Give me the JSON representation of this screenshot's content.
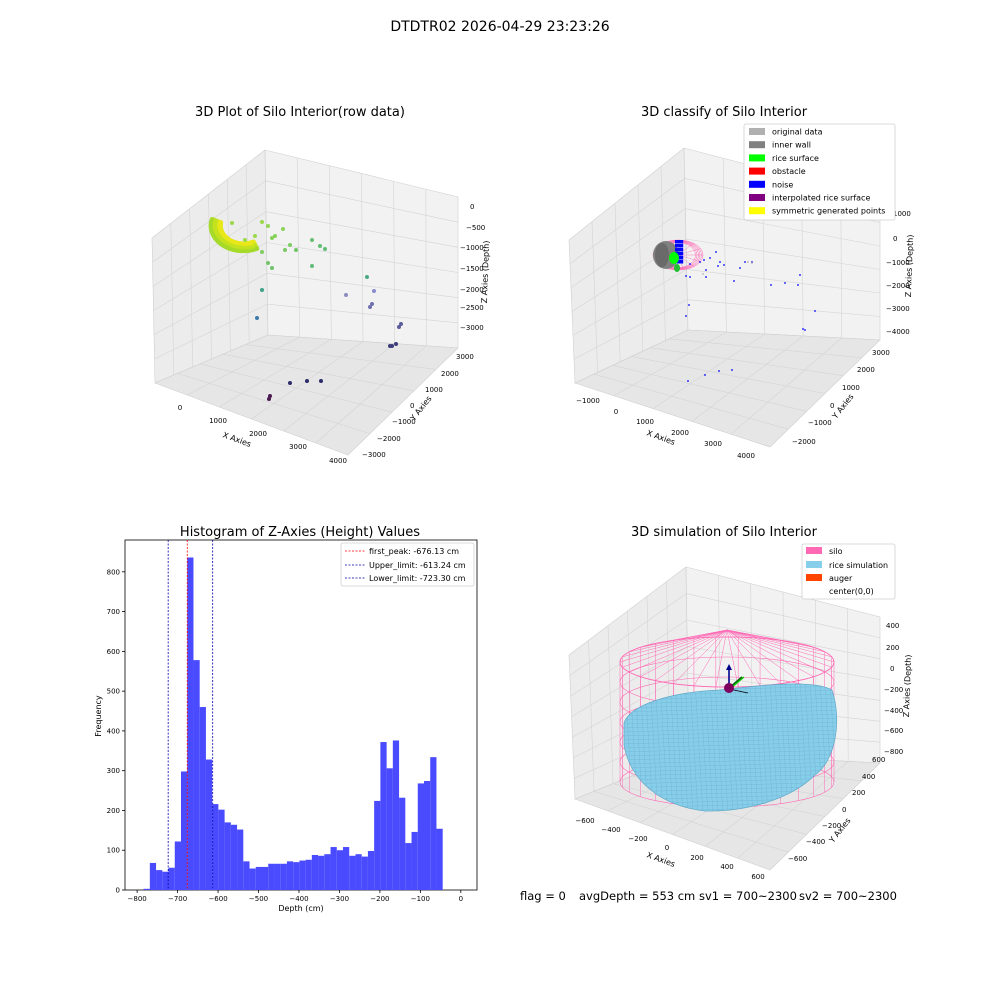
{
  "figure": {
    "title": "DTDTR02 2026-04-29 23:23:26",
    "footer": {
      "flag": "flag = 0",
      "avg_depth": "avgDepth = 553 cm",
      "sv1": "sv1 = 700~2300",
      "sv2": "sv2 = 700~2300"
    }
  },
  "colors": {
    "original": "#b0b0b0",
    "inner_wall": "#808080",
    "rice_surface": "#00ff00",
    "obstacle": "#ff0000",
    "noise": "#0000ff",
    "interp": "#800080",
    "sym": "#ffff00",
    "silo": "#ff69b4",
    "rice_sim": "#87ceeb",
    "auger": "#ff4500",
    "hist_bar": "#4a4afe",
    "peak": "#ff0000",
    "limit": "#0000aa"
  },
  "chart_data": [
    {
      "type": "scatter3d",
      "title": "3D Plot of Silo Interior(row data)",
      "xlabel": "X Axies",
      "ylabel": "Y Axies",
      "zlabel": "Z Axies (Depth)",
      "x_ticks": [
        "0",
        "1000",
        "2000",
        "3000",
        "4000"
      ],
      "y_ticks": [
        "−3000",
        "−2000",
        "−1000",
        "0",
        "1000",
        "2000",
        "3000"
      ],
      "z_ticks": [
        "0",
        "−500",
        "−1000",
        "−1500",
        "−2000",
        "−2500",
        "−3000"
      ],
      "z_tick_labels": [
        "0",
        "−500",
        "−1000",
        "−1500",
        "−2000",
        "−2500",
        "−3000"
      ]
    },
    {
      "type": "scatter3d",
      "title": "3D classify of Silo Interior",
      "xlabel": "X Axies",
      "ylabel": "Y Axies",
      "zlabel": "Z Axies (Depth)",
      "x_ticks": [
        "−1000",
        "0",
        "1000",
        "2000",
        "3000",
        "4000"
      ],
      "y_ticks": [
        "−2000",
        "−1000",
        "0",
        "1000",
        "2000",
        "3000"
      ],
      "z_ticks": [
        "1000",
        "0",
        "−1000",
        "−2000",
        "−3000",
        "−4000"
      ],
      "legend": [
        "original data",
        "inner wall",
        "rice surface",
        "obstacle",
        "noise",
        "interpolated rice surface",
        "symmetric generated points"
      ]
    },
    {
      "type": "bar",
      "title": "Histogram of Z-Axies (Height) Values",
      "xlabel": "Depth (cm)",
      "ylabel": "Frequency",
      "xlim": [
        -830,
        40
      ],
      "ylim": [
        0,
        880
      ],
      "x_ticks": [
        -800,
        -700,
        -600,
        -500,
        -400,
        -300,
        -200,
        -100,
        0
      ],
      "y_ticks": [
        0,
        100,
        200,
        300,
        400,
        500,
        600,
        700,
        800
      ],
      "bin_start": -784,
      "bin_width": 15.4,
      "values": [
        3,
        68,
        50,
        46,
        56,
        122,
        298,
        836,
        578,
        460,
        328,
        216,
        202,
        170,
        164,
        152,
        72,
        54,
        58,
        58,
        66,
        66,
        66,
        72,
        70,
        74,
        76,
        88,
        86,
        90,
        108,
        100,
        108,
        86,
        90,
        84,
        98,
        224,
        372,
        306,
        376,
        232,
        118,
        146,
        268,
        274,
        334,
        154
      ],
      "lines": [
        {
          "label": "first_peak: -676.13 cm",
          "x": -676.13,
          "kind": "peak"
        },
        {
          "label": "Upper_limit: -613.24 cm",
          "x": -613.24,
          "kind": "limit"
        },
        {
          "label": "Lower_limit: -723.30 cm",
          "x": -723.3,
          "kind": "limit"
        }
      ]
    },
    {
      "type": "surface3d",
      "title": "3D simulation of Silo Interior",
      "xlabel": "X Axies",
      "ylabel": "Y Axies",
      "zlabel": "Z Axies (Depth)",
      "x_ticks": [
        "−600",
        "−400",
        "−200",
        "0",
        "200",
        "400",
        "600"
      ],
      "y_ticks": [
        "−600",
        "−400",
        "−200",
        "0",
        "200",
        "400",
        "600"
      ],
      "z_ticks": [
        "400",
        "200",
        "0",
        "−200",
        "−400",
        "−600",
        "−800"
      ],
      "legend": [
        "silo",
        "rice simulation",
        "auger",
        "center(0,0)"
      ]
    }
  ]
}
